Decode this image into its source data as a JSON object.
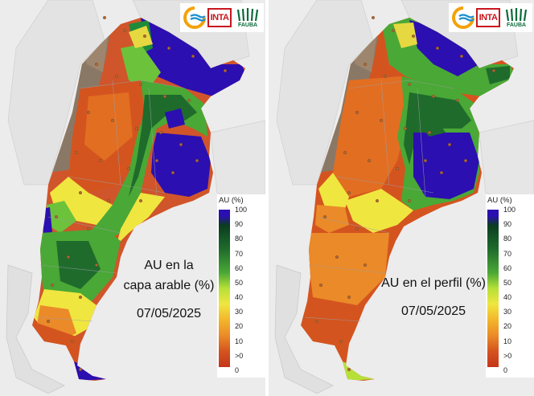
{
  "panels": [
    {
      "caption_line1": "AU en la",
      "caption_line2": "capa arable (%)",
      "date": "07/05/2025"
    },
    {
      "caption_line1": "AU en el perfil (%)",
      "caption_line2": "",
      "date": "07/05/2025"
    }
  ],
  "legend": {
    "title": "AU (%)",
    "ticks": [
      "100",
      "90",
      "80",
      "70",
      "60",
      "50",
      "40",
      "30",
      "20",
      "10",
      ">0",
      "0"
    ]
  },
  "logos": {
    "inta": "INTA",
    "fauba": "FAUBA"
  },
  "colors": {
    "saturated": "#2b0fb0",
    "wet": "#1f6b2c",
    "moist": "#4aa836",
    "medium": "#b6e038",
    "dry_yellow": "#f0e640",
    "dry_orange": "#eb8a28",
    "very_dry": "#c4361a",
    "andes_brown": "#8a7866",
    "neighbor_land": "#e3e3e3"
  }
}
